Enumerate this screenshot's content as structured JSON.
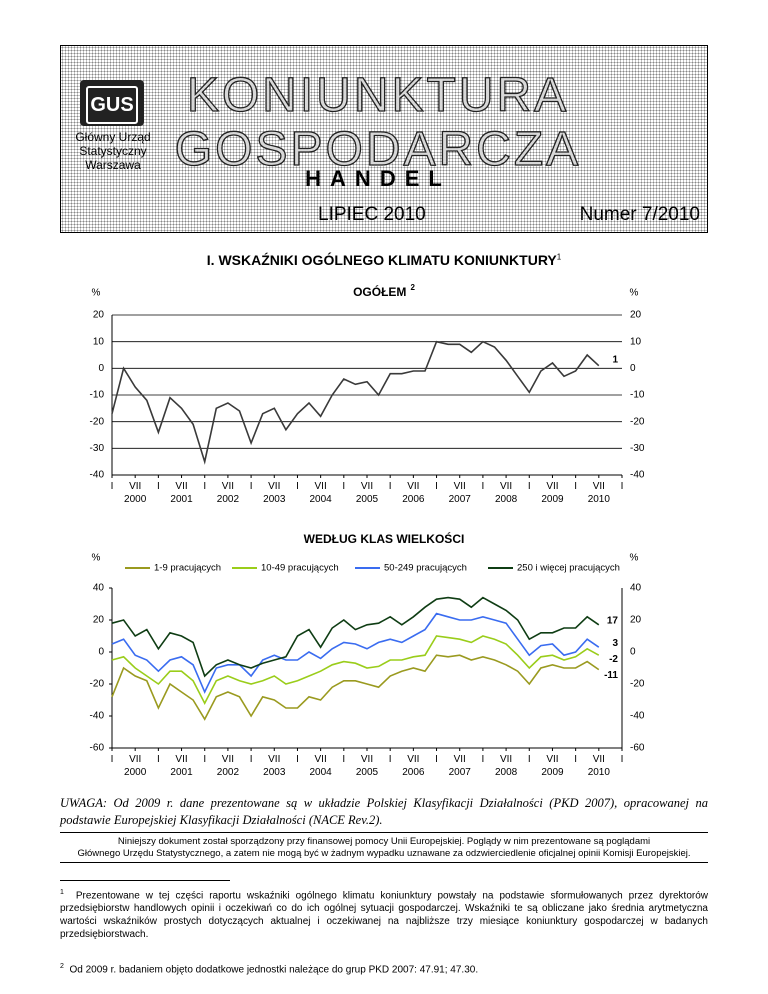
{
  "header": {
    "logo": "GUS",
    "institution": [
      "Główny Urząd",
      "Statystyczny",
      "Warszawa"
    ],
    "title_lines": [
      "KONIUNKTURA",
      "GOSPODARCZA"
    ],
    "subtitle": "HANDEL",
    "month": "LIPIEC 2010",
    "issue": "Numer 7/2010"
  },
  "section": {
    "title": "I. WSKAŹNIKI OGÓLNEGO KLIMATU KONIUNKTURY",
    "note_mark": "1"
  },
  "chart_data": [
    {
      "type": "line",
      "title": "OGÓŁEM",
      "title_note": "2",
      "y_unit": "%",
      "grid": true,
      "x": [
        "2000-01",
        "2000-04",
        "2000-07",
        "2000-10",
        "2001-01",
        "2001-04",
        "2001-07",
        "2001-10",
        "2002-01",
        "2002-04",
        "2002-07",
        "2002-10",
        "2003-01",
        "2003-04",
        "2003-07",
        "2003-10",
        "2004-01",
        "2004-04",
        "2004-07",
        "2004-10",
        "2005-01",
        "2005-04",
        "2005-07",
        "2005-10",
        "2006-01",
        "2006-04",
        "2006-07",
        "2006-10",
        "2007-01",
        "2007-04",
        "2007-07",
        "2007-10",
        "2008-01",
        "2008-04",
        "2008-07",
        "2008-10",
        "2009-01",
        "2009-04",
        "2009-07",
        "2009-10",
        "2010-01",
        "2010-04",
        "2010-07"
      ],
      "xlim": [
        "2000-01",
        "2011-01"
      ],
      "xticks": [
        {
          "value": "2000-01",
          "label": "I"
        },
        {
          "value": "2000-07",
          "label": "VII"
        },
        {
          "value": "2001-01",
          "label": "I"
        },
        {
          "value": "2001-07",
          "label": "VII"
        },
        {
          "value": "2002-01",
          "label": "I"
        },
        {
          "value": "2002-07",
          "label": "VII"
        },
        {
          "value": "2003-01",
          "label": "I"
        },
        {
          "value": "2003-07",
          "label": "VII"
        },
        {
          "value": "2004-01",
          "label": "I"
        },
        {
          "value": "2004-07",
          "label": "VII"
        },
        {
          "value": "2005-01",
          "label": "I"
        },
        {
          "value": "2005-07",
          "label": "VII"
        },
        {
          "value": "2006-01",
          "label": "I"
        },
        {
          "value": "2006-07",
          "label": "VII"
        },
        {
          "value": "2007-01",
          "label": "I"
        },
        {
          "value": "2007-07",
          "label": "VII"
        },
        {
          "value": "2008-01",
          "label": "I"
        },
        {
          "value": "2008-07",
          "label": "VII"
        },
        {
          "value": "2009-01",
          "label": "I"
        },
        {
          "value": "2009-07",
          "label": "VII"
        },
        {
          "value": "2010-01",
          "label": "I"
        },
        {
          "value": "2010-07",
          "label": "VII"
        },
        {
          "value": "2011-01",
          "label": "I"
        }
      ],
      "year_labels": [
        {
          "value": "2000-07",
          "label": "2000"
        },
        {
          "value": "2001-07",
          "label": "2001"
        },
        {
          "value": "2002-07",
          "label": "2002"
        },
        {
          "value": "2003-07",
          "label": "2003"
        },
        {
          "value": "2004-07",
          "label": "2004"
        },
        {
          "value": "2005-07",
          "label": "2005"
        },
        {
          "value": "2006-07",
          "label": "2006"
        },
        {
          "value": "2007-07",
          "label": "2007"
        },
        {
          "value": "2008-07",
          "label": "2008"
        },
        {
          "value": "2009-07",
          "label": "2009"
        },
        {
          "value": "2010-07",
          "label": "2010"
        }
      ],
      "ylim": [
        -40,
        20
      ],
      "yticks": [
        -40,
        -30,
        -20,
        -10,
        0,
        10,
        20
      ],
      "series": [
        {
          "color": "#3a3a3a",
          "values": [
            -17,
            0,
            -7,
            -12,
            -24,
            -11,
            -15,
            -21,
            -35,
            -15,
            -13,
            -16,
            -28,
            -17,
            -15,
            -23,
            -17,
            -13,
            -18,
            -10,
            -4,
            -6,
            -5,
            -10,
            -2,
            -2,
            -1,
            -1,
            10,
            9,
            9,
            6,
            10,
            8,
            3,
            -3,
            -9,
            -1,
            2,
            -3,
            -1,
            5,
            1
          ]
        }
      ]
    },
    {
      "type": "line",
      "title": "WEDŁUG KLAS WIELKOŚCI",
      "y_unit": "%",
      "grid": false,
      "x": [
        "2000-01",
        "2000-04",
        "2000-07",
        "2000-10",
        "2001-01",
        "2001-04",
        "2001-07",
        "2001-10",
        "2002-01",
        "2002-04",
        "2002-07",
        "2002-10",
        "2003-01",
        "2003-04",
        "2003-07",
        "2003-10",
        "2004-01",
        "2004-04",
        "2004-07",
        "2004-10",
        "2005-01",
        "2005-04",
        "2005-07",
        "2005-10",
        "2006-01",
        "2006-04",
        "2006-07",
        "2006-10",
        "2007-01",
        "2007-04",
        "2007-07",
        "2007-10",
        "2008-01",
        "2008-04",
        "2008-07",
        "2008-10",
        "2009-01",
        "2009-04",
        "2009-07",
        "2009-10",
        "2010-01",
        "2010-04",
        "2010-07"
      ],
      "xlim": [
        "2000-01",
        "2011-01"
      ],
      "xticks": [
        {
          "value": "2000-01",
          "label": "I"
        },
        {
          "value": "2000-07",
          "label": "VII"
        },
        {
          "value": "2001-01",
          "label": "I"
        },
        {
          "value": "2001-07",
          "label": "VII"
        },
        {
          "value": "2002-01",
          "label": "I"
        },
        {
          "value": "2002-07",
          "label": "VII"
        },
        {
          "value": "2003-01",
          "label": "I"
        },
        {
          "value": "2003-07",
          "label": "VII"
        },
        {
          "value": "2004-01",
          "label": "I"
        },
        {
          "value": "2004-07",
          "label": "VII"
        },
        {
          "value": "2005-01",
          "label": "I"
        },
        {
          "value": "2005-07",
          "label": "VII"
        },
        {
          "value": "2006-01",
          "label": "I"
        },
        {
          "value": "2006-07",
          "label": "VII"
        },
        {
          "value": "2007-01",
          "label": "I"
        },
        {
          "value": "2007-07",
          "label": "VII"
        },
        {
          "value": "2008-01",
          "label": "I"
        },
        {
          "value": "2008-07",
          "label": "VII"
        },
        {
          "value": "2009-01",
          "label": "I"
        },
        {
          "value": "2009-07",
          "label": "VII"
        },
        {
          "value": "2010-01",
          "label": "I"
        },
        {
          "value": "2010-07",
          "label": "VII"
        },
        {
          "value": "2011-01",
          "label": "I"
        }
      ],
      "year_labels": [
        {
          "value": "2000-07",
          "label": "2000"
        },
        {
          "value": "2001-07",
          "label": "2001"
        },
        {
          "value": "2002-07",
          "label": "2002"
        },
        {
          "value": "2003-07",
          "label": "2003"
        },
        {
          "value": "2004-07",
          "label": "2004"
        },
        {
          "value": "2005-07",
          "label": "2005"
        },
        {
          "value": "2006-07",
          "label": "2006"
        },
        {
          "value": "2007-07",
          "label": "2007"
        },
        {
          "value": "2008-07",
          "label": "2008"
        },
        {
          "value": "2009-07",
          "label": "2009"
        },
        {
          "value": "2010-07",
          "label": "2010"
        }
      ],
      "ylim": [
        -60,
        40
      ],
      "yticks": [
        -60,
        -40,
        -20,
        0,
        20,
        40
      ],
      "series": [
        {
          "name": "1-9 pracujących",
          "color": "#9a9a1f",
          "values": [
            -28,
            -10,
            -15,
            -18,
            -35,
            -20,
            -25,
            -30,
            -42,
            -28,
            -25,
            -28,
            -40,
            -28,
            -30,
            -35,
            -35,
            -28,
            -30,
            -22,
            -18,
            -18,
            -20,
            -22,
            -15,
            -12,
            -10,
            -12,
            -2,
            -3,
            -2,
            -5,
            -3,
            -5,
            -8,
            -12,
            -20,
            -10,
            -8,
            -10,
            -10,
            -6,
            -11
          ]
        },
        {
          "name": "10-49 pracujących",
          "color": "#9acd1a",
          "values": [
            -5,
            -3,
            -10,
            -15,
            -20,
            -12,
            -12,
            -18,
            -32,
            -18,
            -15,
            -18,
            -20,
            -18,
            -15,
            -20,
            -18,
            -15,
            -12,
            -8,
            -6,
            -7,
            -10,
            -9,
            -5,
            -5,
            -3,
            -2,
            10,
            9,
            8,
            6,
            10,
            8,
            5,
            -2,
            -10,
            -3,
            -2,
            -5,
            -3,
            2,
            -2
          ]
        },
        {
          "name": "50-249 pracujących",
          "color": "#3a6cf0",
          "values": [
            5,
            8,
            -2,
            -5,
            -12,
            -5,
            -3,
            -8,
            -25,
            -10,
            -8,
            -8,
            -15,
            -5,
            -2,
            -5,
            -5,
            0,
            -4,
            2,
            6,
            5,
            2,
            6,
            8,
            6,
            10,
            14,
            24,
            22,
            20,
            20,
            22,
            20,
            18,
            8,
            -2,
            4,
            5,
            -2,
            0,
            8,
            3
          ]
        },
        {
          "name": "250 i więcej pracujących",
          "color": "#0f3d14",
          "values": [
            18,
            20,
            10,
            14,
            2,
            12,
            10,
            6,
            -15,
            -8,
            -5,
            -8,
            -10,
            -7,
            -5,
            -3,
            10,
            14,
            3,
            15,
            20,
            14,
            17,
            18,
            22,
            17,
            22,
            28,
            33,
            34,
            33,
            28,
            34,
            30,
            26,
            20,
            8,
            12,
            12,
            15,
            15,
            22,
            17
          ]
        }
      ]
    }
  ],
  "note": "UWAGA: Od 2009 r. dane prezentowane są w układzie Polskiej Klasyfikacji Działalności (PKD 2007), opracowanej na podstawie Europejskiej Klasyfikacji Działalności (NACE Rev.2).",
  "disclaimer": [
    "Niniejszy dokument został sporządzony przy finansowej pomocy Unii Europejskiej. Poglądy w nim prezentowane są poglądami",
    "Głównego Urzędu Statystycznego, a zatem nie mogą być w żadnym wypadku uznawane za odzwierciedlenie oficjalnej opinii Komisji Europejskiej."
  ],
  "footnotes": [
    {
      "mark": "1",
      "text": "Prezentowane w tej części raportu wskaźniki ogólnego klimatu koniunktury powstały na podstawie sformułowanych przez dyrektorów przedsiębiorstw handlowych opinii i oczekiwań co do ich ogólnej sytuacji gospodarczej. Wskaźniki te są obliczane jako średnia arytmetyczna wartości wskaźników prostych dotyczących aktualnej i oczekiwanej na najbliższe trzy miesiące koniunktury gospodarczej w badanych przedsiębiorstwach."
    },
    {
      "mark": "2",
      "text": "Od 2009 r. badaniem objęto dodatkowe jednostki należące do grup PKD 2007: 47.91; 47.30."
    }
  ]
}
